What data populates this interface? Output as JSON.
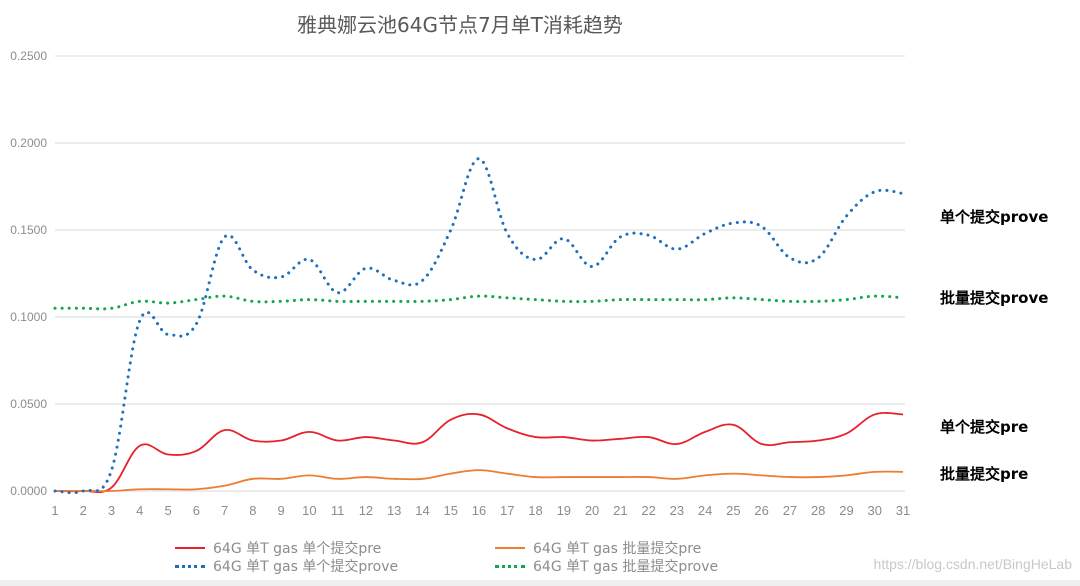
{
  "chart_data": {
    "type": "line",
    "title": "雅典娜云池64G节点7月单T消耗趋势",
    "xlabel": "",
    "ylabel": "",
    "ylim": [
      0,
      0.25
    ],
    "yticks": [
      "0.0000",
      "0.0500",
      "0.1000",
      "0.1500",
      "0.2000",
      "0.2500"
    ],
    "grid": true,
    "legend_position": "bottom",
    "x": [
      1,
      2,
      3,
      4,
      5,
      6,
      7,
      8,
      9,
      10,
      11,
      12,
      13,
      14,
      15,
      16,
      17,
      18,
      19,
      20,
      21,
      22,
      23,
      24,
      25,
      26,
      27,
      28,
      29,
      30,
      31
    ],
    "series": [
      {
        "name": "64G 单T gas 单个提交pre",
        "color": "#e8202a",
        "style": "solid",
        "values": [
          0.0,
          0.0,
          0.002,
          0.026,
          0.021,
          0.023,
          0.035,
          0.029,
          0.029,
          0.034,
          0.029,
          0.031,
          0.029,
          0.028,
          0.041,
          0.044,
          0.036,
          0.031,
          0.031,
          0.029,
          0.03,
          0.031,
          0.027,
          0.034,
          0.038,
          0.027,
          0.028,
          0.029,
          0.033,
          0.044,
          0.044
        ]
      },
      {
        "name": "64G 单T gas 批量提交pre",
        "color": "#ed7d31",
        "style": "solid",
        "values": [
          0.0,
          0.0,
          0.0,
          0.001,
          0.001,
          0.001,
          0.003,
          0.007,
          0.007,
          0.009,
          0.007,
          0.008,
          0.007,
          0.007,
          0.01,
          0.012,
          0.01,
          0.008,
          0.008,
          0.008,
          0.008,
          0.008,
          0.007,
          0.009,
          0.01,
          0.009,
          0.008,
          0.008,
          0.009,
          0.011,
          0.011
        ]
      },
      {
        "name": "64G 单T gas 单个提交prove",
        "color": "#1f6fbf",
        "style": "dotted",
        "values": [
          0.0,
          0.0,
          0.012,
          0.098,
          0.09,
          0.096,
          0.146,
          0.127,
          0.123,
          0.133,
          0.114,
          0.128,
          0.121,
          0.121,
          0.15,
          0.191,
          0.148,
          0.133,
          0.145,
          0.129,
          0.146,
          0.147,
          0.139,
          0.148,
          0.154,
          0.152,
          0.134,
          0.134,
          0.158,
          0.172,
          0.171
        ]
      },
      {
        "name": "64G 单T gas 批量提交prove",
        "color": "#12a650",
        "style": "dotted",
        "values": [
          0.105,
          0.105,
          0.105,
          0.109,
          0.108,
          0.11,
          0.112,
          0.109,
          0.109,
          0.11,
          0.109,
          0.109,
          0.109,
          0.109,
          0.11,
          0.112,
          0.111,
          0.11,
          0.109,
          0.109,
          0.11,
          0.11,
          0.11,
          0.11,
          0.111,
          0.11,
          0.109,
          0.109,
          0.11,
          0.112,
          0.111
        ]
      }
    ],
    "annotations": [
      {
        "text": "单个提交prove",
        "color": "#2140b8"
      },
      {
        "text": "批量提交prove",
        "color": "#12a650"
      },
      {
        "text": "单个提交pre",
        "color": "#e8101a"
      },
      {
        "text": "批量提交pre",
        "color": "#e07a22"
      }
    ]
  },
  "watermark": "https://blog.csdn.net/BingHeLab"
}
